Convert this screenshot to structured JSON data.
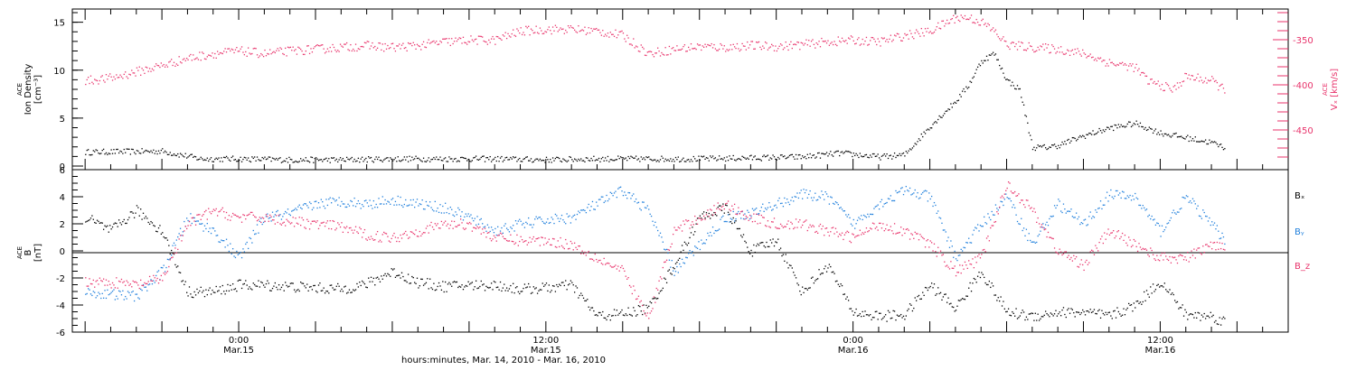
{
  "chart_data": [
    {
      "type": "scatter",
      "panel": "ion-density-vx",
      "ylabel_lines": [
        "ACE",
        "Ion Density",
        "[cm⁻³]"
      ],
      "ylim": [
        0,
        16
      ],
      "yticks": [
        0,
        5,
        10,
        15
      ],
      "y2label_lines": [
        "ACE",
        "Vₓ [km/s]"
      ],
      "y2lim": [
        -490,
        -320
      ],
      "y2ticks": [
        -350,
        -400,
        -450
      ],
      "colors": {
        "density": "#000000",
        "vx": "#e8336b"
      },
      "series": [
        {
          "name": "",
          "axis": "left",
          "color": "#000000",
          "x": [
            -6,
            -3,
            -1.5,
            0,
            2,
            4,
            6,
            8,
            10,
            12,
            14,
            16,
            18,
            20,
            22,
            23.5,
            25,
            26,
            27,
            28,
            28.5,
            29,
            29.5,
            30,
            30.5,
            31,
            31.5,
            32,
            33,
            34,
            35,
            36,
            37,
            38,
            38.5
          ],
          "y": [
            1.5,
            1.6,
            0.8,
            0.8,
            0.7,
            0.7,
            0.8,
            0.8,
            0.8,
            0.7,
            0.8,
            0.8,
            0.8,
            0.9,
            1.0,
            1.4,
            1.0,
            1.2,
            4.2,
            6.8,
            8.5,
            11.0,
            11.8,
            9.0,
            8.0,
            2.0,
            2.0,
            2.2,
            3.2,
            4.0,
            4.5,
            3.5,
            3.0,
            2.5,
            2.0
          ]
        },
        {
          "name": "",
          "axis": "right",
          "color": "#e8336b",
          "x": [
            -6,
            -5,
            -4,
            -3,
            -2,
            -1,
            0,
            1,
            2,
            3,
            4,
            5,
            6,
            7,
            8,
            9,
            10,
            11,
            12,
            13,
            14,
            15,
            16,
            17,
            18,
            19,
            20,
            21,
            22,
            23,
            24,
            25,
            26,
            27,
            28,
            28.5,
            29,
            29.5,
            30,
            31,
            32,
            33,
            34,
            35,
            35.5,
            36,
            36.5,
            37,
            38,
            38.5
          ],
          "y": [
            -395,
            -392,
            -385,
            -378,
            -370,
            -365,
            -362,
            -365,
            -362,
            -360,
            -358,
            -356,
            -358,
            -356,
            -352,
            -350,
            -350,
            -340,
            -338,
            -338,
            -340,
            -345,
            -365,
            -360,
            -357,
            -358,
            -356,
            -357,
            -355,
            -352,
            -350,
            -352,
            -345,
            -340,
            -325,
            -325,
            -330,
            -340,
            -355,
            -358,
            -360,
            -365,
            -375,
            -380,
            -395,
            -400,
            -405,
            -390,
            -395,
            -405
          ]
        }
      ]
    },
    {
      "type": "scatter",
      "panel": "imf-components",
      "ylabel_lines": [
        "ACE",
        "B",
        "[nT]"
      ],
      "ylim": [
        -6,
        6
      ],
      "yticks": [
        -6,
        -4,
        -2,
        0,
        2,
        4,
        6
      ],
      "colors": {
        "Bx": "#000000",
        "By": "#1f7fdc",
        "Bz": "#e8336b"
      },
      "legend": [
        "Bₓ",
        "Bᵧ",
        "B_z"
      ],
      "series": [
        {
          "name": "Bₓ",
          "color": "#000000",
          "x": [
            -6,
            -5,
            -4,
            -3,
            -2,
            -1,
            0,
            1,
            2,
            3,
            4,
            5,
            6,
            7,
            8,
            9,
            10,
            11,
            12,
            13,
            14,
            15,
            16,
            17,
            18,
            19,
            20,
            21,
            22,
            23,
            24,
            25,
            26,
            27,
            28,
            29,
            30,
            31,
            32,
            33,
            34,
            35,
            36,
            37,
            38,
            38.5
          ],
          "y": [
            2.5,
            1.5,
            3.0,
            1.5,
            -3.0,
            -3.0,
            -2.5,
            -2.5,
            -2.6,
            -2.7,
            -2.8,
            -2.4,
            -1.5,
            -2.3,
            -2.6,
            -2.5,
            -2.5,
            -2.8,
            -2.7,
            -2.5,
            -4.8,
            -4.6,
            -4.2,
            -1.0,
            2.5,
            3.2,
            0.0,
            0.8,
            -3.0,
            -1.0,
            -4.5,
            -4.8,
            -4.7,
            -2.5,
            -4.2,
            -1.5,
            -4.5,
            -4.8,
            -4.5,
            -4.5,
            -4.8,
            -4.0,
            -2.2,
            -4.7,
            -4.8,
            -5.2
          ]
        },
        {
          "name": "Bᵧ",
          "color": "#1f7fdc",
          "x": [
            -6,
            -5,
            -4,
            -3,
            -2,
            -1,
            0,
            1,
            2,
            3,
            4,
            5,
            6,
            7,
            8,
            9,
            10,
            11,
            12,
            13,
            14,
            15,
            16,
            17,
            18,
            19,
            20,
            21,
            22,
            23,
            24,
            25,
            26,
            27,
            28,
            29,
            30,
            31,
            32,
            33,
            34,
            35,
            36,
            37,
            38,
            38.5
          ],
          "y": [
            -3.0,
            -3.2,
            -3.3,
            -1.5,
            2.5,
            1.5,
            -0.5,
            2.5,
            2.8,
            3.5,
            3.7,
            3.5,
            3.8,
            3.5,
            3.2,
            2.5,
            1.5,
            2.0,
            2.3,
            2.5,
            3.5,
            4.5,
            3.0,
            -1.5,
            0.5,
            2.5,
            2.8,
            3.5,
            4.2,
            4.0,
            2.0,
            3.5,
            4.5,
            4.0,
            -0.5,
            2.0,
            4.0,
            0.5,
            3.5,
            2.0,
            4.2,
            4.0,
            1.5,
            4.0,
            2.0,
            0.8
          ]
        },
        {
          "name": "B_z",
          "color": "#e8336b",
          "x": [
            -6,
            -5,
            -4,
            -3,
            -2,
            -1,
            0,
            1,
            2,
            3,
            4,
            5,
            6,
            7,
            8,
            9,
            10,
            11,
            12,
            13,
            14,
            15,
            16,
            17,
            18,
            19,
            20,
            21,
            22,
            23,
            24,
            25,
            26,
            27,
            28,
            29,
            30,
            31,
            32,
            33,
            34,
            35,
            36,
            37,
            38,
            38.5
          ],
          "y": [
            -2.2,
            -2.3,
            -2.5,
            -2.0,
            2.0,
            3.0,
            2.5,
            2.5,
            2.2,
            2.0,
            1.8,
            1.2,
            1.0,
            1.5,
            2.0,
            2.0,
            1.0,
            0.8,
            0.8,
            0.5,
            -0.5,
            -1.5,
            -5.0,
            1.5,
            2.5,
            3.5,
            2.5,
            2.0,
            2.0,
            1.5,
            1.0,
            2.0,
            1.5,
            0.5,
            -1.5,
            -0.5,
            5.0,
            3.0,
            0.0,
            -1.0,
            1.5,
            0.5,
            -0.5,
            -0.5,
            0.5,
            0.5
          ]
        }
      ]
    }
  ],
  "xaxis": {
    "range_hours": [
      -6.5,
      41
    ],
    "ticks": [
      {
        "hour": 0,
        "time": "0:00",
        "date": "Mar.15"
      },
      {
        "hour": 12,
        "time": "12:00",
        "date": "Mar.15"
      },
      {
        "hour": 24,
        "time": "0:00",
        "date": "Mar.16"
      },
      {
        "hour": 36,
        "time": "12:00",
        "date": "Mar.16"
      }
    ],
    "title": "hours:minutes, Mar. 14, 2010 - Mar. 16, 2010"
  }
}
